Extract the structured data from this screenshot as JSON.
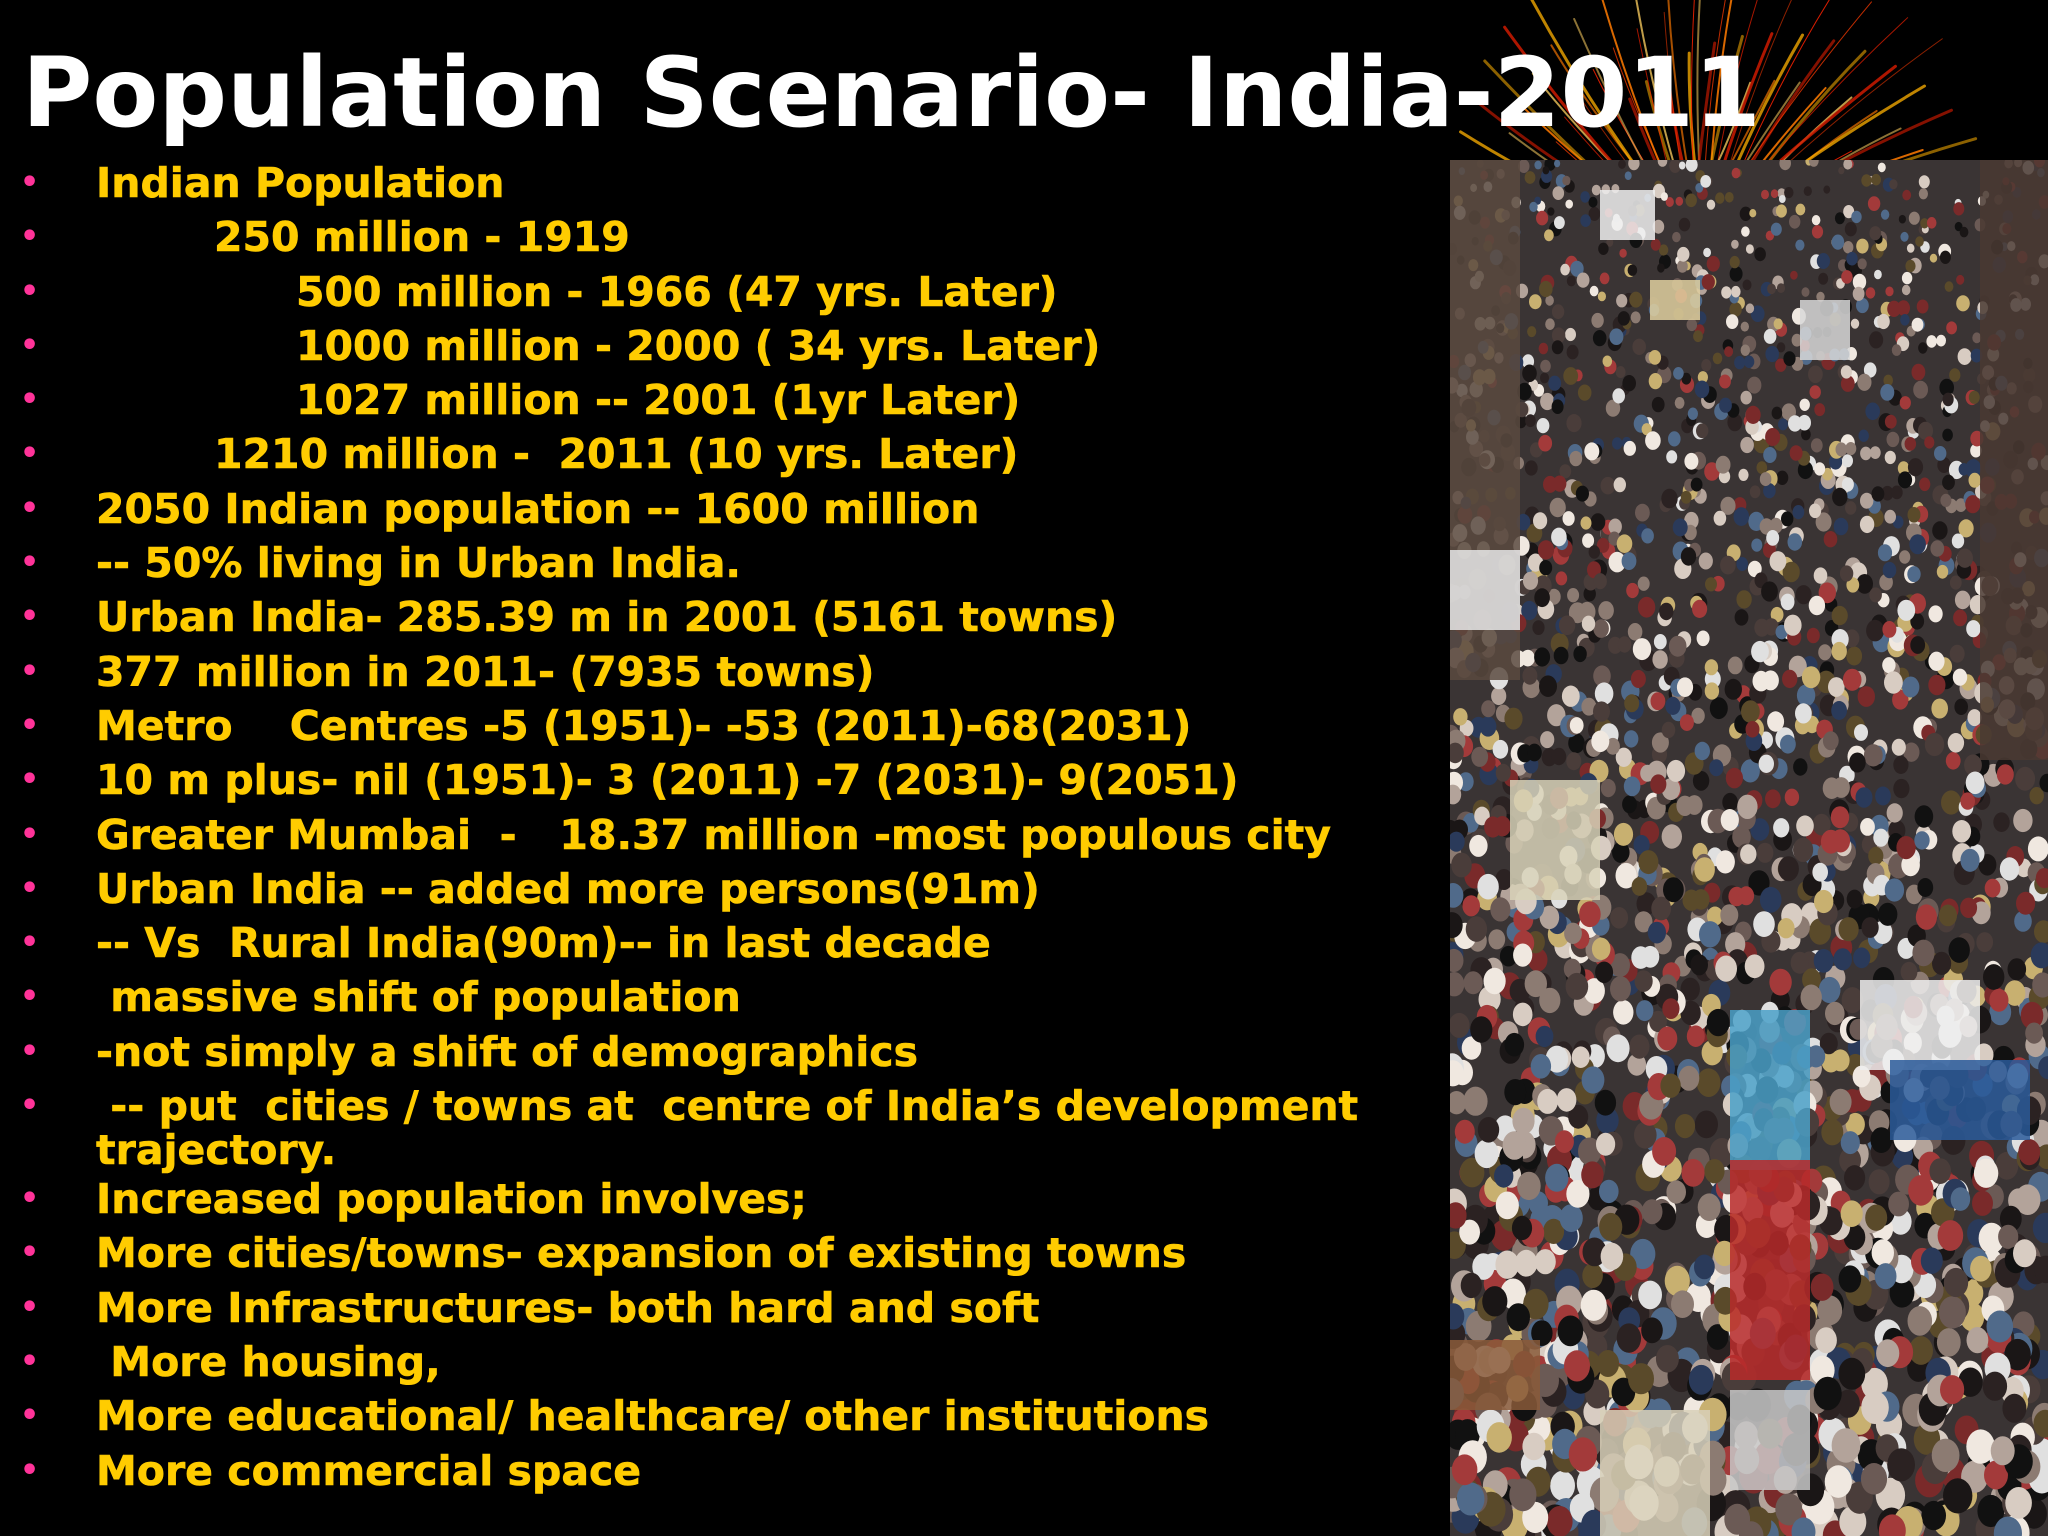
{
  "title": "Population Scenario- India-2011",
  "colors": {
    "background": "#000000",
    "title": "#ffffff",
    "bullet_text": "#ffcc00",
    "bullet_marker": "#ff3399"
  },
  "bullets": [
    {
      "text": "Indian Population",
      "indent": 0
    },
    {
      "text": "250 million - 1919",
      "indent": 1
    },
    {
      "text": "500 million - 1966 (47 yrs. Later)",
      "indent": 2
    },
    {
      "text": "1000 million - 2000 ( 34 yrs. Later)",
      "indent": 2
    },
    {
      "text": "1027 million -- 2001 (1yr Later)",
      "indent": 2
    },
    {
      "text": "1210 million -  2011 (10 yrs. Later)",
      "indent": 1
    },
    {
      "text": "2050 Indian population -- 1600 million",
      "indent": 0
    },
    {
      "text": "-- 50% living in Urban India.",
      "indent": 0
    },
    {
      "text": "Urban India- 285.39 m in 2001 (5161 towns)",
      "indent": 0
    },
    {
      "text": "377 million in 2011- (7935 towns)",
      "indent": 0
    },
    {
      "text": "Metro    Centres -5 (1951)- -53 (2011)-68(2031)",
      "indent": 0
    },
    {
      "text": "10 m plus- nil (1951)- 3 (2011) -7 (2031)- 9(2051)",
      "indent": 0
    },
    {
      "text": "Greater Mumbai  -   18.37 million -most populous city",
      "indent": 0
    },
    {
      "text": "Urban India -- added more persons(91m)",
      "indent": 0
    },
    {
      "text": "-- Vs  Rural India(90m)-- in last decade",
      "indent": 0
    },
    {
      "text": " massive shift of population",
      "indent": 0
    },
    {
      "text": "-not simply a shift of demographics",
      "indent": 0
    },
    {
      "text": " -- put  cities / towns at  centre of India’s development trajectory.",
      "indent": 0,
      "two_line": true
    },
    {
      "text": "Increased population involves;",
      "indent": 0
    },
    {
      "text": "More cities/towns- expansion of existing towns",
      "indent": 0
    },
    {
      "text": "More Infrastructures- both hard and soft",
      "indent": 0
    },
    {
      "text": " More housing,",
      "indent": 0
    },
    {
      "text": "More educational/ healthcare/ other institutions",
      "indent": 0
    },
    {
      "text": "More commercial space",
      "indent": 0
    }
  ],
  "bullet_marker": "•",
  "images": {
    "photo": "crowded-street-photo",
    "decoration": "firework-burst"
  }
}
